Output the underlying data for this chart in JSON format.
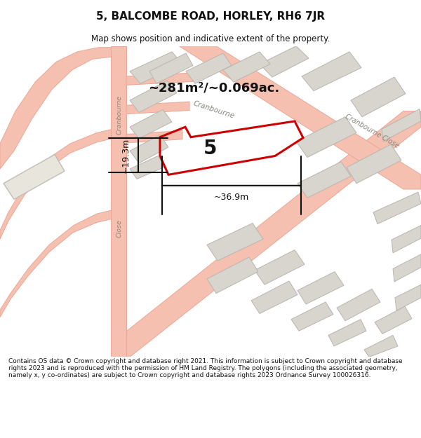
{
  "title": "5, BALCOMBE ROAD, HORLEY, RH6 7JR",
  "subtitle": "Map shows position and indicative extent of the property.",
  "footer": "Contains OS data © Crown copyright and database right 2021. This information is subject to Crown copyright and database rights 2023 and is reproduced with the permission of HM Land Registry. The polygons (including the associated geometry, namely x, y co-ordinates) are subject to Crown copyright and database rights 2023 Ordnance Survey 100026316.",
  "area_label": "~281m²/~0.069ac.",
  "dim_width": "~36.9m",
  "dim_height": "~19.3m",
  "property_number": "5",
  "road_color": "#f5c0b0",
  "road_edge": "#e8a898",
  "building_color": "#d8d5ce",
  "building_edge": "#b8b5ae",
  "property_color": "#cc0000",
  "map_bg": "#f0eeea"
}
